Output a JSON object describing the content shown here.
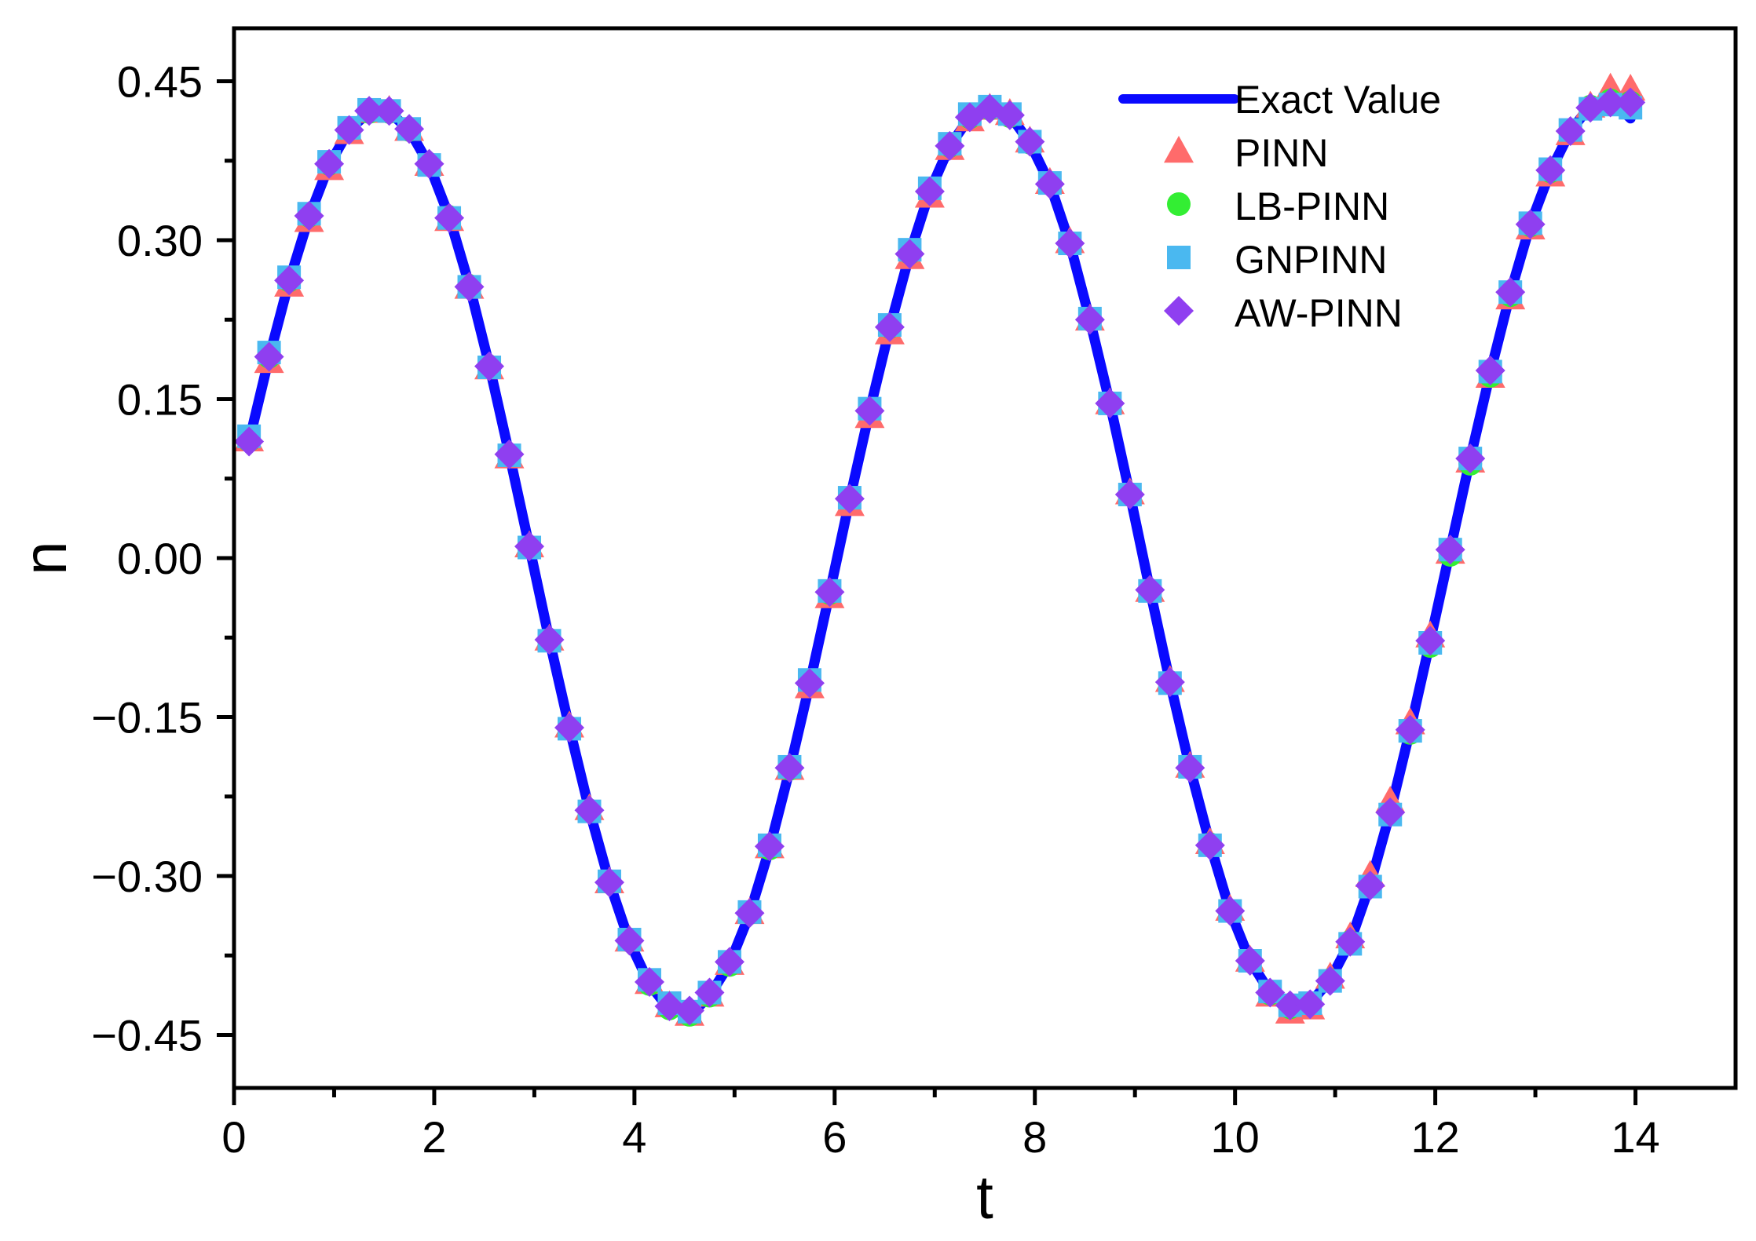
{
  "chart_data": {
    "type": "line",
    "xlabel": "t",
    "ylabel": "n",
    "xlim": [
      0,
      15
    ],
    "ylim": [
      -0.5,
      0.5
    ],
    "x_ticks": [
      0,
      2,
      4,
      6,
      8,
      10,
      12,
      14
    ],
    "x_tick_labels": [
      "0",
      "2",
      "4",
      "6",
      "8",
      "10",
      "12",
      "14"
    ],
    "x_minor_ticks": [
      1,
      3,
      5,
      7,
      9,
      11,
      13
    ],
    "y_ticks": [
      0.45,
      0.3,
      0.15,
      0.0,
      -0.15,
      -0.3,
      -0.45
    ],
    "y_tick_labels": [
      "0.45",
      "0.30",
      "0.15",
      "0.00",
      "−0.15",
      "−0.30",
      "−0.45"
    ],
    "y_minor_ticks": [
      0.375,
      0.225,
      0.075,
      -0.075,
      -0.225,
      -0.375
    ],
    "grid": false,
    "legend_position": "top-right",
    "x": [
      0.15,
      0.35,
      0.55,
      0.75,
      0.95,
      1.15,
      1.35,
      1.55,
      1.75,
      1.95,
      2.15,
      2.35,
      2.55,
      2.75,
      2.95,
      3.15,
      3.35,
      3.55,
      3.75,
      3.95,
      4.15,
      4.35,
      4.55,
      4.75,
      4.95,
      5.15,
      5.35,
      5.55,
      5.75,
      5.95,
      6.15,
      6.35,
      6.55,
      6.75,
      6.95,
      7.15,
      7.35,
      7.55,
      7.75,
      7.95,
      8.15,
      8.35,
      8.55,
      8.75,
      8.95,
      9.15,
      9.35,
      9.55,
      9.75,
      9.95,
      10.15,
      10.35,
      10.55,
      10.75,
      10.95,
      11.15,
      11.35,
      11.55,
      11.75,
      11.95,
      12.15,
      12.35,
      12.55,
      12.75,
      12.95,
      13.15,
      13.35,
      13.55,
      13.75,
      13.95
    ],
    "series": [
      {
        "name": "Exact Value",
        "kind": "line",
        "color": "#0a0aff",
        "values": [
          0.11,
          0.189,
          0.261,
          0.322,
          0.371,
          0.404,
          0.421,
          0.421,
          0.404,
          0.371,
          0.322,
          0.258,
          0.182,
          0.098,
          0.011,
          -0.077,
          -0.16,
          -0.238,
          -0.306,
          -0.362,
          -0.402,
          -0.426,
          -0.432,
          -0.413,
          -0.383,
          -0.336,
          -0.274,
          -0.2,
          -0.119,
          -0.033,
          0.055,
          0.139,
          0.217,
          0.287,
          0.346,
          0.389,
          0.416,
          0.424,
          0.418,
          0.392,
          0.353,
          0.297,
          0.225,
          0.146,
          0.06,
          -0.03,
          -0.117,
          -0.198,
          -0.27,
          -0.333,
          -0.38,
          -0.41,
          -0.424,
          -0.42,
          -0.398,
          -0.362,
          -0.308,
          -0.24,
          -0.162,
          -0.078,
          0.008,
          0.094,
          0.175,
          0.25,
          0.315,
          0.365,
          0.403,
          0.427,
          0.433,
          0.415
        ]
      },
      {
        "name": "PINN",
        "kind": "scatter",
        "marker": "triangle",
        "color": "#ff6b6b",
        "values": [
          0.112,
          0.186,
          0.258,
          0.319,
          0.368,
          0.402,
          0.422,
          0.423,
          0.405,
          0.372,
          0.32,
          0.256,
          0.18,
          0.096,
          0.012,
          -0.076,
          -0.158,
          -0.236,
          -0.305,
          -0.36,
          -0.4,
          -0.422,
          -0.43,
          -0.412,
          -0.382,
          -0.334,
          -0.272,
          -0.198,
          -0.121,
          -0.036,
          0.051,
          0.134,
          0.213,
          0.284,
          0.342,
          0.387,
          0.414,
          0.425,
          0.42,
          0.394,
          0.355,
          0.299,
          0.226,
          0.147,
          0.062,
          -0.03,
          -0.115,
          -0.196,
          -0.268,
          -0.331,
          -0.379,
          -0.412,
          -0.428,
          -0.424,
          -0.395,
          -0.357,
          -0.299,
          -0.229,
          -0.155,
          -0.073,
          0.006,
          0.092,
          0.172,
          0.246,
          0.312,
          0.362,
          0.401,
          0.427,
          0.444,
          0.443
        ]
      },
      {
        "name": "LB-PINN",
        "kind": "scatter",
        "marker": "circle",
        "color": "#33ee33",
        "values": [
          0.111,
          0.19,
          0.262,
          0.323,
          0.372,
          0.405,
          0.421,
          0.421,
          0.404,
          0.372,
          0.322,
          0.257,
          0.181,
          0.097,
          0.01,
          -0.077,
          -0.16,
          -0.238,
          -0.306,
          -0.361,
          -0.402,
          -0.425,
          -0.431,
          -0.413,
          -0.384,
          -0.335,
          -0.274,
          -0.199,
          -0.117,
          -0.033,
          0.056,
          0.14,
          0.218,
          0.288,
          0.348,
          0.389,
          0.416,
          0.424,
          0.417,
          0.392,
          0.354,
          0.297,
          0.225,
          0.146,
          0.06,
          -0.031,
          -0.117,
          -0.198,
          -0.27,
          -0.333,
          -0.38,
          -0.411,
          -0.424,
          -0.42,
          -0.398,
          -0.362,
          -0.309,
          -0.241,
          -0.165,
          -0.083,
          0.003,
          0.089,
          0.172,
          0.248,
          0.314,
          0.365,
          0.403,
          0.426,
          0.432,
          0.43
        ]
      },
      {
        "name": "GNPINN",
        "kind": "scatter",
        "marker": "square",
        "color": "#4ab8f0",
        "values": [
          0.115,
          0.194,
          0.265,
          0.325,
          0.374,
          0.406,
          0.423,
          0.422,
          0.405,
          0.371,
          0.321,
          0.256,
          0.18,
          0.097,
          0.01,
          -0.078,
          -0.161,
          -0.239,
          -0.305,
          -0.36,
          -0.398,
          -0.42,
          -0.428,
          -0.41,
          -0.381,
          -0.334,
          -0.271,
          -0.197,
          -0.115,
          -0.031,
          0.057,
          0.141,
          0.22,
          0.291,
          0.349,
          0.391,
          0.419,
          0.426,
          0.419,
          0.393,
          0.354,
          0.297,
          0.226,
          0.146,
          0.06,
          -0.031,
          -0.118,
          -0.197,
          -0.271,
          -0.333,
          -0.38,
          -0.409,
          -0.422,
          -0.42,
          -0.399,
          -0.364,
          -0.31,
          -0.242,
          -0.163,
          -0.08,
          0.008,
          0.094,
          0.176,
          0.251,
          0.316,
          0.367,
          0.404,
          0.424,
          0.428,
          0.425
        ]
      },
      {
        "name": "AW-PINN",
        "kind": "scatter",
        "marker": "diamond",
        "color": "#8f3ff0",
        "values": [
          0.11,
          0.19,
          0.262,
          0.323,
          0.372,
          0.404,
          0.422,
          0.422,
          0.405,
          0.372,
          0.321,
          0.256,
          0.181,
          0.098,
          0.011,
          -0.077,
          -0.16,
          -0.238,
          -0.306,
          -0.361,
          -0.4,
          -0.423,
          -0.427,
          -0.41,
          -0.381,
          -0.335,
          -0.272,
          -0.198,
          -0.118,
          -0.032,
          0.056,
          0.139,
          0.218,
          0.287,
          0.346,
          0.389,
          0.416,
          0.424,
          0.418,
          0.393,
          0.353,
          0.297,
          0.225,
          0.146,
          0.06,
          -0.03,
          -0.117,
          -0.198,
          -0.271,
          -0.333,
          -0.38,
          -0.41,
          -0.422,
          -0.421,
          -0.399,
          -0.362,
          -0.309,
          -0.24,
          -0.162,
          -0.078,
          0.008,
          0.094,
          0.177,
          0.251,
          0.315,
          0.366,
          0.403,
          0.425,
          0.43,
          0.43
        ]
      }
    ]
  }
}
